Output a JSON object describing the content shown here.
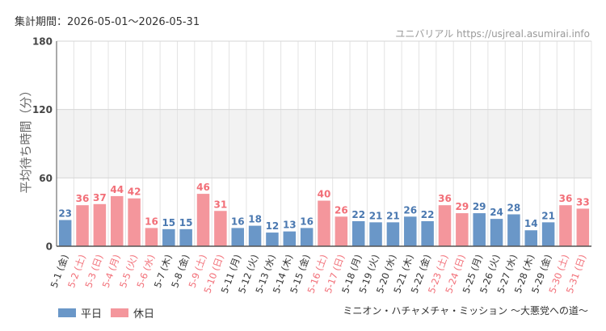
{
  "header": {
    "period": "集計期間：2026-05-01～2026-05-31",
    "source": "ユニバリアル https://usjreal.asumirai.info"
  },
  "footer": {
    "subtitle": "ミニオン・ハチャメチャ・ミッション ～大悪党への道～"
  },
  "colors": {
    "weekday": "#6a97c8",
    "holiday": "#f4969c",
    "weekday_label": "#4a78b0",
    "holiday_label": "#f26f78",
    "band": "#f2f2f2",
    "grid": "#e3e3e3"
  },
  "chart_data": {
    "type": "bar",
    "ylabel": "平均待ち時間（分）",
    "ylim": [
      0,
      180
    ],
    "yticks": [
      0,
      60,
      120,
      180
    ],
    "shaded_range": [
      60,
      120
    ],
    "grid": true,
    "legend_position": "bottom-left",
    "series": [
      {
        "name": "平日"
      },
      {
        "name": "休日"
      }
    ],
    "categories": [
      "5-1 (金)",
      "5-2 (土)",
      "5-3 (日)",
      "5-4 (月)",
      "5-5 (火)",
      "5-6 (水)",
      "5-7 (木)",
      "5-8 (金)",
      "5-9 (土)",
      "5-10 (日)",
      "5-11 (月)",
      "5-12 (火)",
      "5-13 (水)",
      "5-14 (木)",
      "5-15 (金)",
      "5-16 (土)",
      "5-17 (日)",
      "5-18 (月)",
      "5-19 (火)",
      "5-20 (水)",
      "5-21 (木)",
      "5-22 (金)",
      "5-23 (土)",
      "5-24 (日)",
      "5-25 (月)",
      "5-26 (火)",
      "5-27 (水)",
      "5-28 (木)",
      "5-29 (金)",
      "5-30 (土)",
      "5-31 (日)"
    ],
    "values": [
      23,
      36,
      37,
      44,
      42,
      16,
      15,
      15,
      46,
      31,
      16,
      18,
      12,
      13,
      16,
      40,
      26,
      22,
      21,
      21,
      26,
      22,
      36,
      29,
      29,
      24,
      28,
      14,
      21,
      36,
      33
    ],
    "day_type": [
      "平日",
      "休日",
      "休日",
      "休日",
      "休日",
      "休日",
      "平日",
      "平日",
      "休日",
      "休日",
      "平日",
      "平日",
      "平日",
      "平日",
      "平日",
      "休日",
      "休日",
      "平日",
      "平日",
      "平日",
      "平日",
      "平日",
      "休日",
      "休日",
      "平日",
      "平日",
      "平日",
      "平日",
      "平日",
      "休日",
      "休日"
    ]
  }
}
